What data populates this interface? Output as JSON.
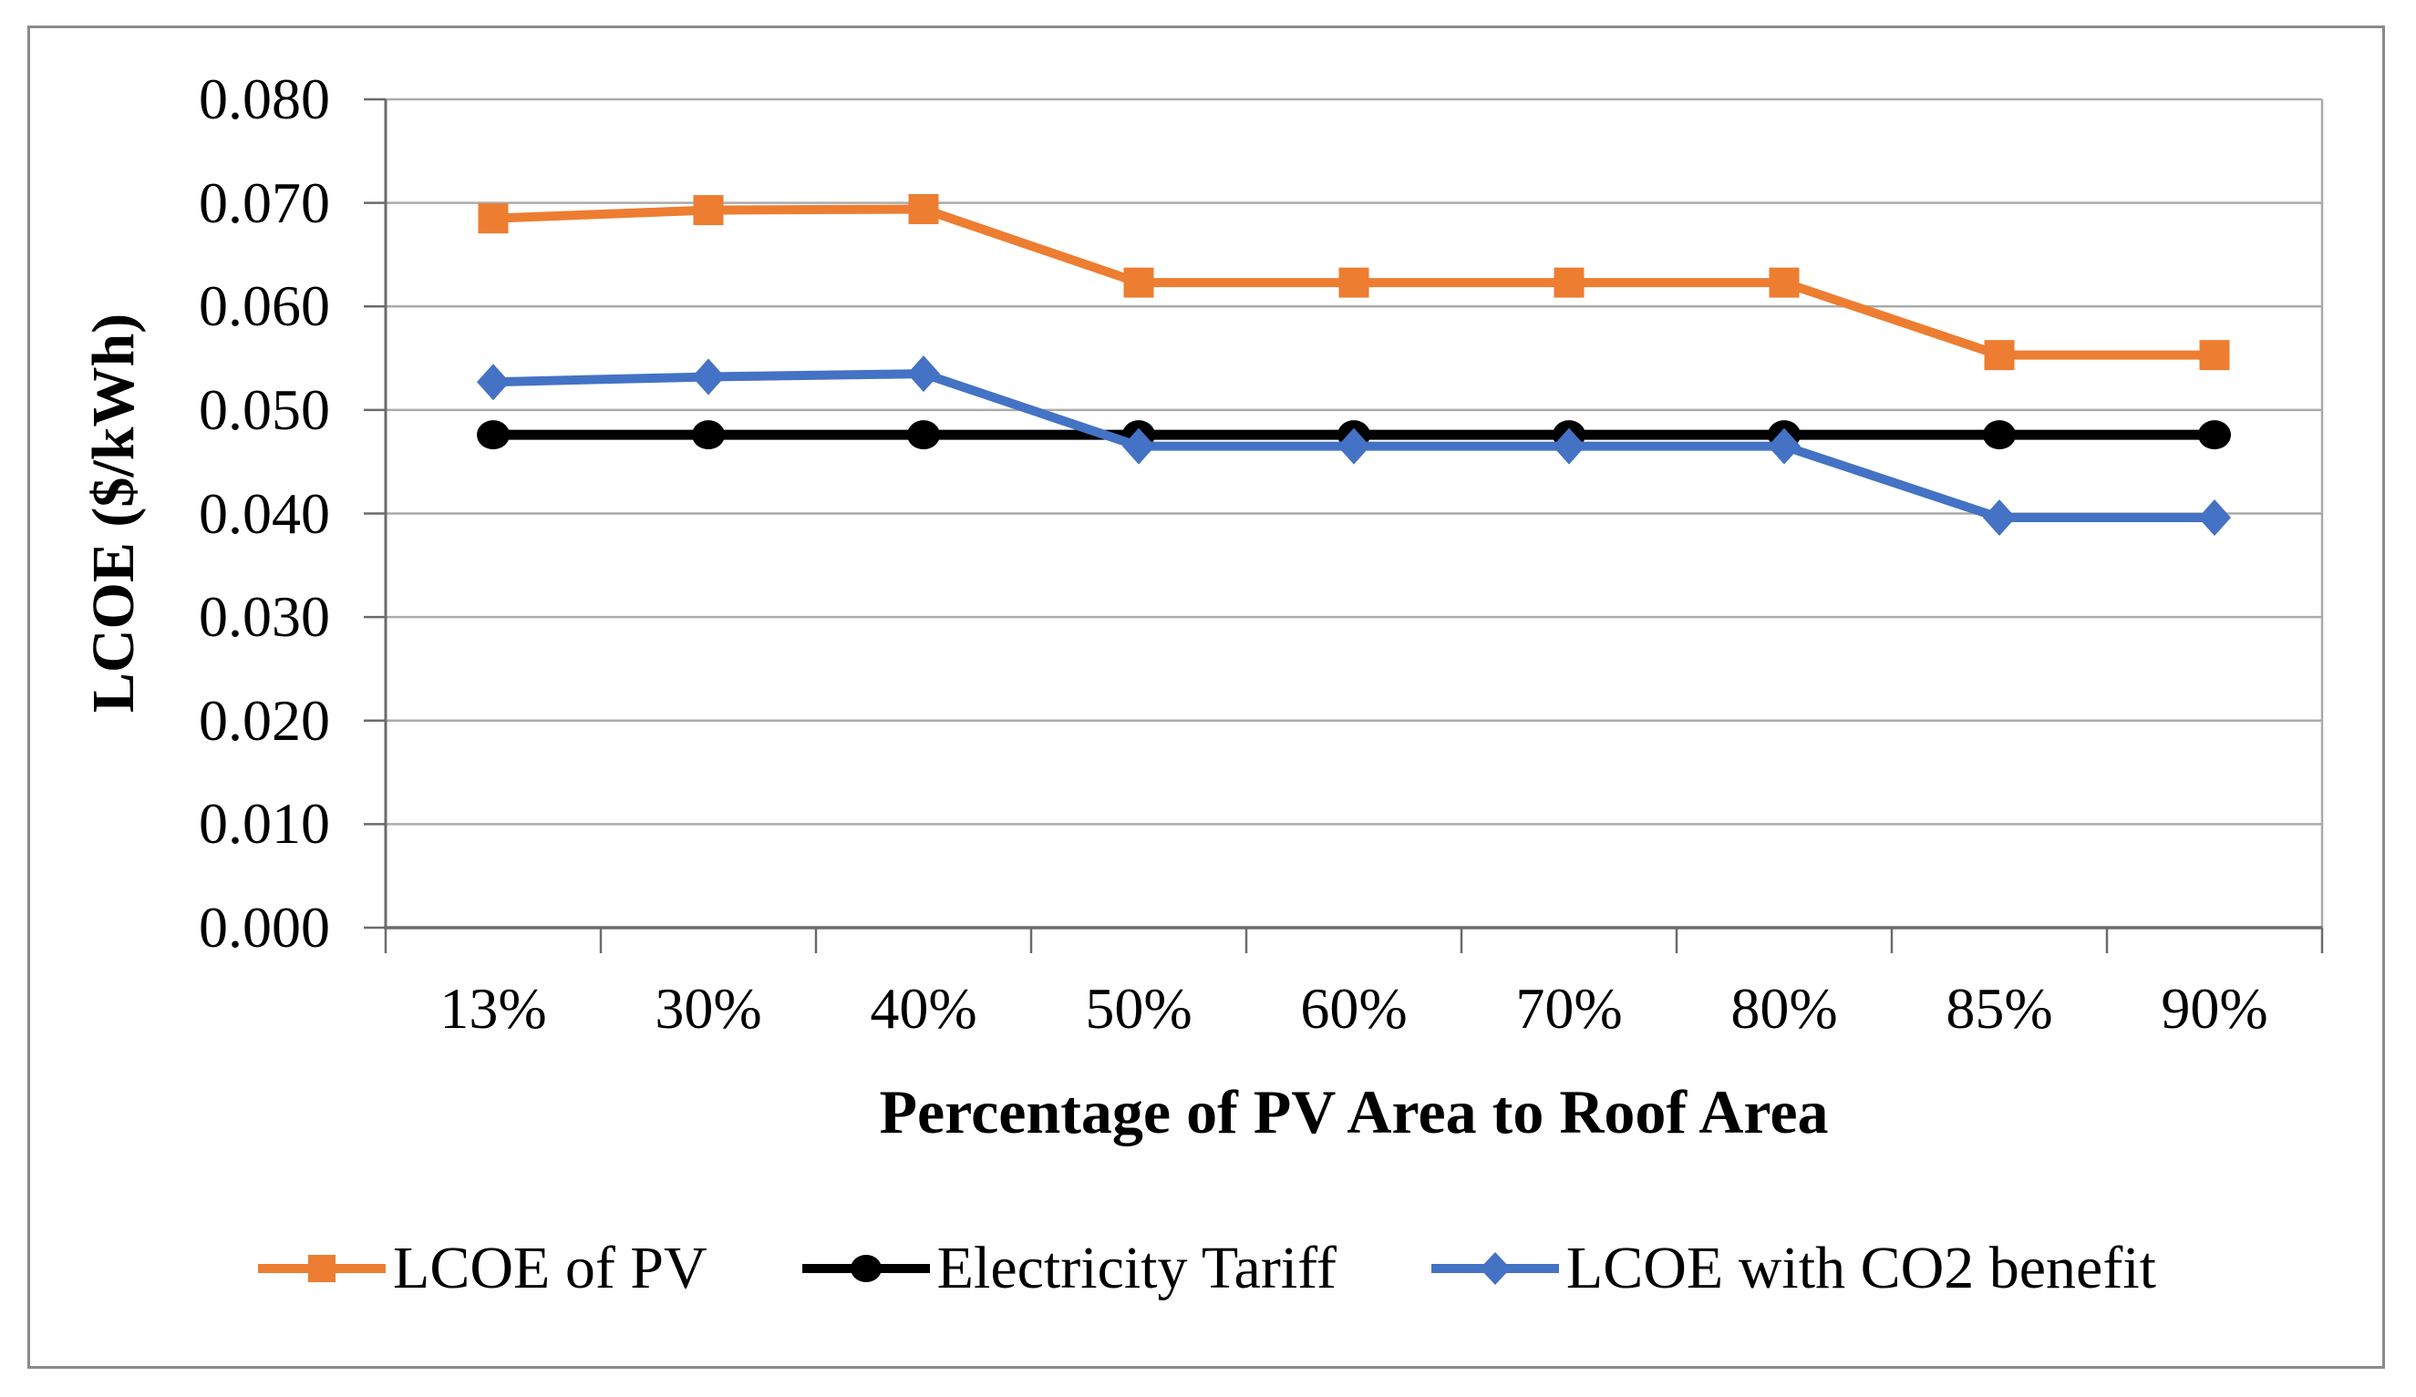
{
  "chart_data": {
    "type": "line",
    "xlabel": "Percentage of PV Area to Roof Area",
    "ylabel": "LCOE ($/kWh)",
    "categories": [
      "13%",
      "30%",
      "40%",
      "50%",
      "60%",
      "70%",
      "80%",
      "85%",
      "90%"
    ],
    "y_ticks": [
      0.0,
      0.01,
      0.02,
      0.03,
      0.04,
      0.05,
      0.06,
      0.07,
      0.08
    ],
    "y_tick_labels": [
      "0.000",
      "0.010",
      "0.020",
      "0.030",
      "0.040",
      "0.050",
      "0.060",
      "0.070",
      "0.080"
    ],
    "ylim": [
      0,
      0.08
    ],
    "grid": "horizontal",
    "legend_position": "bottom",
    "series": [
      {
        "name": "LCOE of PV",
        "marker": "square",
        "color": "#ED7D31",
        "values": [
          0.0685,
          0.0693,
          0.0694,
          0.0623,
          0.0623,
          0.0623,
          0.0623,
          0.0553,
          0.0553
        ]
      },
      {
        "name": "Electricity Tariff",
        "marker": "circle",
        "color": "#000000",
        "values": [
          0.0476,
          0.0476,
          0.0476,
          0.0476,
          0.0476,
          0.0476,
          0.0476,
          0.0476,
          0.0476
        ]
      },
      {
        "name": "LCOE with CO2 benefit",
        "marker": "diamond",
        "color": "#4472C4",
        "values": [
          0.0527,
          0.0532,
          0.0535,
          0.0465,
          0.0465,
          0.0465,
          0.0465,
          0.0396,
          0.0396
        ]
      }
    ],
    "colors": {
      "gridline": "#ABABAB",
      "axis": "#6B6B6B",
      "frame_border": "#8A8A8A",
      "background": "#FFFFFF"
    }
  }
}
